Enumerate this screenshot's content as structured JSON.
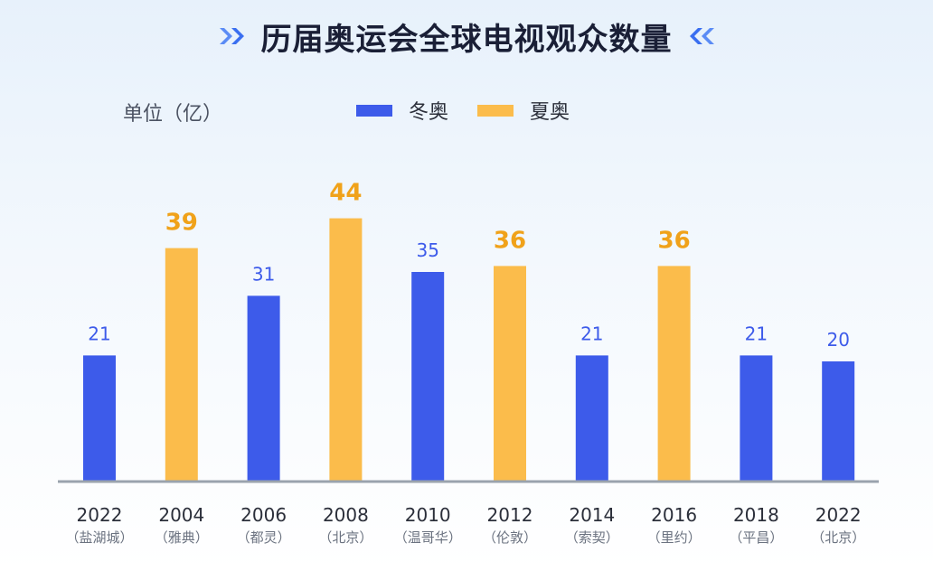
{
  "title": "历届奥运会全球电视观众数量",
  "unit_label": "单位（亿）",
  "colors": {
    "winter": "#3d5bea",
    "summer": "#fbbc4b",
    "winter_label": "#3d5bea",
    "summer_label": "#f0a21a",
    "axis": "#9aa3ad",
    "tick_text": "#2b2f3a",
    "sub_text": "#6b7280",
    "chevron": "#3a6ff0"
  },
  "legend": [
    {
      "key": "winter",
      "label": "冬奥"
    },
    {
      "key": "summer",
      "label": "夏奥"
    }
  ],
  "chart_data": {
    "type": "bar",
    "title": "历届奥运会全球电视观众数量",
    "ylabel": "单位（亿）",
    "ylim": [
      0,
      48
    ],
    "grid": false,
    "legend_position": "top",
    "categories": [
      {
        "year": "2022",
        "city": "（盐湖城）",
        "series": "winter",
        "value": 21
      },
      {
        "year": "2004",
        "city": "（雅典）",
        "series": "summer",
        "value": 39
      },
      {
        "year": "2006",
        "city": "（都灵）",
        "series": "winter",
        "value": 31
      },
      {
        "year": "2008",
        "city": "（北京）",
        "series": "summer",
        "value": 44
      },
      {
        "year": "2010",
        "city": "（温哥华）",
        "series": "winter",
        "value": 35
      },
      {
        "year": "2012",
        "city": "（伦敦）",
        "series": "summer",
        "value": 36
      },
      {
        "year": "2014",
        "city": "（索契）",
        "series": "winter",
        "value": 21
      },
      {
        "year": "2016",
        "city": "（里约）",
        "series": "summer",
        "value": 36
      },
      {
        "year": "2018",
        "city": "（平昌）",
        "series": "winter",
        "value": 21
      },
      {
        "year": "2022",
        "city": "（北京）",
        "series": "winter",
        "value": 20
      }
    ]
  }
}
